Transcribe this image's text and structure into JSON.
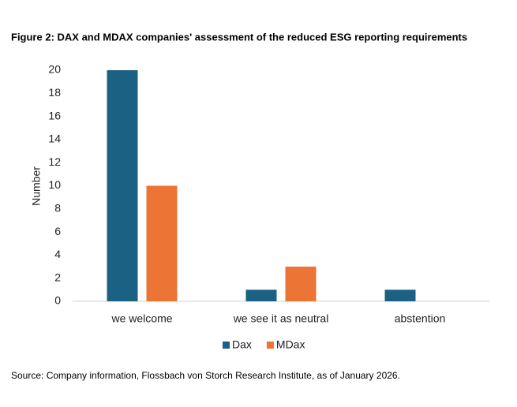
{
  "chart_data": {
    "type": "bar",
    "title": "Figure 2: DAX and MDAX companies' assessment of the reduced ESG reporting requirements",
    "y_label": "Number",
    "categories": [
      "we welcome",
      "we see it as neutral",
      "abstention"
    ],
    "series": [
      {
        "name": "Dax",
        "color": "#1b6183",
        "values": [
          20,
          1,
          1
        ]
      },
      {
        "name": "MDax",
        "color": "#ec7434",
        "values": [
          10,
          3,
          0
        ]
      }
    ],
    "ylim": [
      0,
      20
    ],
    "yticks": [
      0,
      2,
      4,
      6,
      8,
      10,
      12,
      14,
      16,
      18,
      20
    ],
    "grid": false,
    "legend": "bottom",
    "source": "Source: Company information, Flossbach von Storch Research Institute, as of January 2026."
  }
}
